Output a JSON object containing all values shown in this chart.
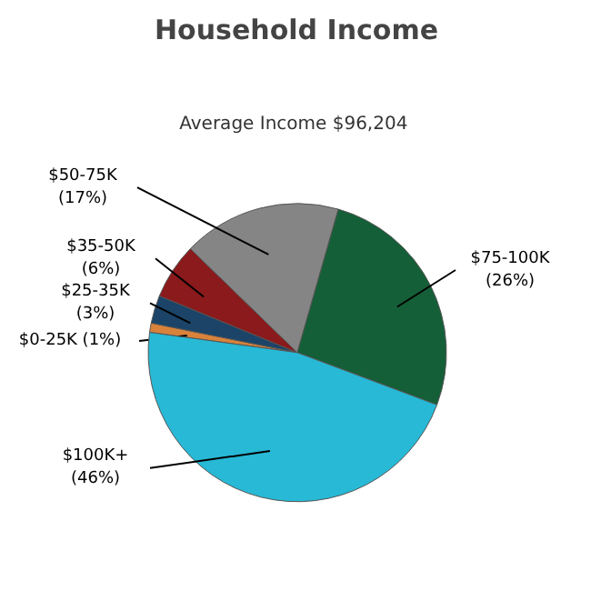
{
  "chart_data": {
    "type": "pie",
    "title": "Household Income",
    "subtitle": "Average Income  $96,204",
    "categories": [
      "$0-25K",
      "$25-35K",
      "$35-50K",
      "$50-75K",
      "$75-100K",
      "$100K+"
    ],
    "values": [
      1,
      3,
      6,
      17,
      26,
      46
    ],
    "colors": [
      "#d9823b",
      "#1b4468",
      "#8a1a1c",
      "#858585",
      "#145f37",
      "#27b9d6"
    ],
    "value_labels": [
      "(1%)",
      "(3%)",
      "(6%)",
      "(17%)",
      "(26%)",
      "(46%)"
    ]
  }
}
